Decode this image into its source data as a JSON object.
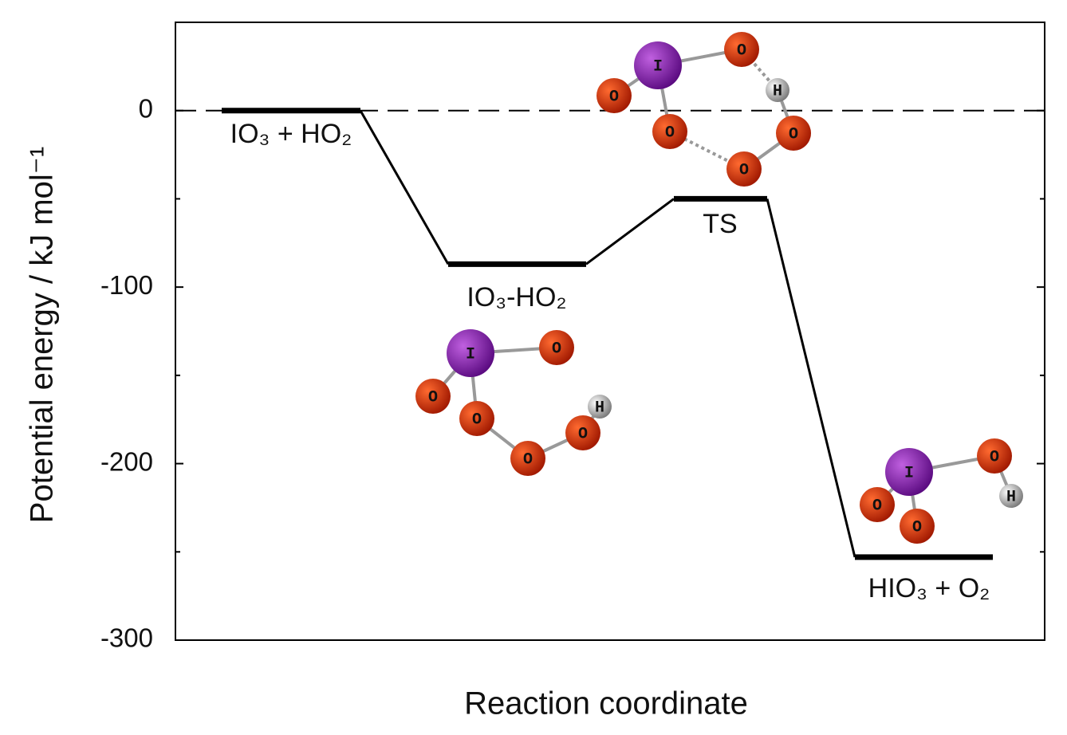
{
  "chart_data": {
    "type": "line",
    "x_label": "Reaction coordinate",
    "y_label": "Potential energy / kJ mol⁻¹",
    "categories": [
      "IO₃ + HO₂",
      "IO₃-HO₂",
      "TS",
      "HIO₃ + O₂"
    ],
    "values": [
      0,
      -87,
      -50,
      -253
    ],
    "color": "#000000",
    "ylim": [
      -300,
      50
    ],
    "yticks": [
      0,
      -100,
      -200,
      -300
    ],
    "minor_yticks": [
      -50,
      -150,
      -250
    ],
    "reference_line": 0,
    "structures": [
      [
        "I",
        "O",
        "H",
        "O",
        "O",
        "O",
        "O"
      ],
      [
        "I",
        "O",
        "O",
        "O",
        "O",
        "O",
        "H"
      ],
      [
        "I",
        "O",
        "H",
        "O",
        "O"
      ]
    ]
  }
}
